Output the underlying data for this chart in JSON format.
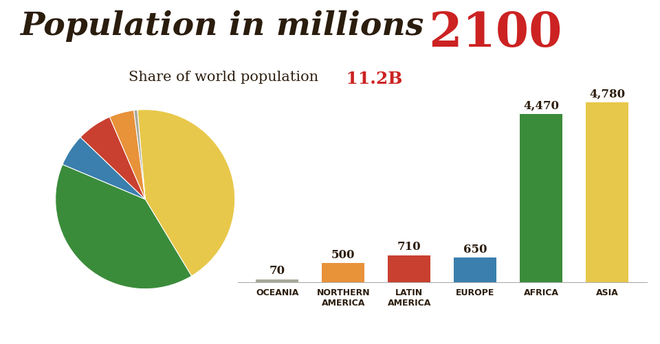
{
  "title_text": "Population in millions",
  "title_year": " 2100",
  "subtitle_text": "Share of world population",
  "subtitle_value": "  11.2B",
  "title_color": "#2b1d0e",
  "highlight_color": "#cc2222",
  "background_color": "#ffffff",
  "bar_categories": [
    "OCEANIA",
    "NORTHERN\nAMERICA",
    "LATIN\nAMERICA",
    "EUROPE",
    "AFRICA",
    "ASIA"
  ],
  "bar_values": [
    70,
    500,
    710,
    650,
    4470,
    4780
  ],
  "bar_colors": [
    "#a8a89a",
    "#e8923a",
    "#c94030",
    "#3a7fad",
    "#3a8c3a",
    "#e8c84a"
  ],
  "pie_values": [
    4780,
    4470,
    650,
    710,
    500,
    70
  ],
  "pie_colors": [
    "#e8c84a",
    "#3a8c3a",
    "#3a7fad",
    "#c94030",
    "#e8923a",
    "#a8a89a"
  ],
  "bar_label_fontsize": 12,
  "xlabel_fontsize": 9,
  "title_fontsize": 34,
  "year_fontsize": 50,
  "subtitle_fontsize": 15,
  "subtitle_value_fontsize": 18,
  "pie_startangle": 95
}
